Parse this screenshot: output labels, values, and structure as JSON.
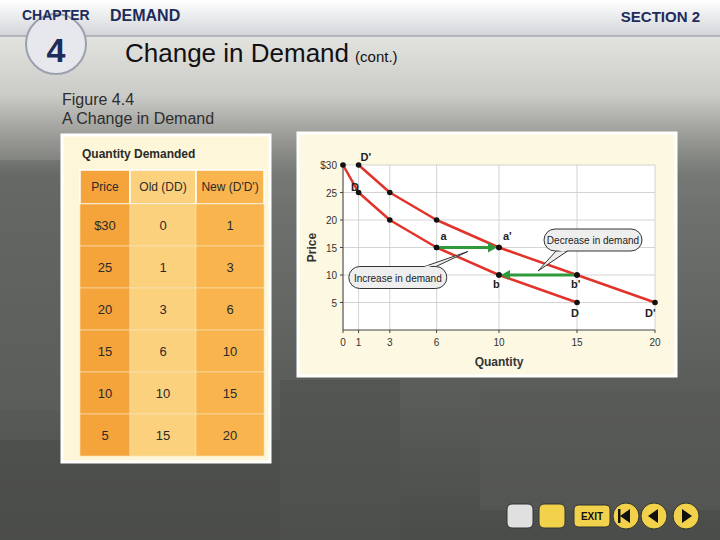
{
  "header": {
    "chapter_label": "CHAPTER",
    "chapter_number": "4",
    "chapter_title": "DEMAND",
    "section": "SECTION 2"
  },
  "title": "Change in Demand",
  "title_suffix": "(cont.)",
  "figure": {
    "number": "Figure 4.4",
    "caption": "A Change in Demand"
  },
  "table": {
    "title": "Quantity Demanded",
    "columns": [
      "Price",
      "Old (DD)",
      "New (D'D')"
    ],
    "rows": [
      [
        "$30",
        0,
        1
      ],
      [
        25,
        1,
        3
      ],
      [
        20,
        3,
        6
      ],
      [
        15,
        6,
        10
      ],
      [
        10,
        10,
        15
      ],
      [
        5,
        15,
        20
      ]
    ]
  },
  "chart_data": {
    "type": "line",
    "x_label": "Quantity",
    "y_label": "Price",
    "xlim": [
      0,
      20
    ],
    "xticks": [
      0,
      1,
      3,
      6,
      10,
      15,
      20
    ],
    "ylim": [
      0,
      30
    ],
    "yticks": [
      5,
      10,
      15,
      20,
      25,
      {
        "value": 30,
        "label": "$30"
      }
    ],
    "grid": true,
    "series": [
      {
        "name": "D",
        "color": "#e2332b",
        "marker": "circle",
        "x": [
          0,
          1,
          3,
          6,
          10,
          15
        ],
        "values": [
          30,
          25,
          20,
          15,
          10,
          5
        ]
      },
      {
        "name": "D'",
        "color": "#e2332b",
        "marker": "circle",
        "x": [
          1,
          3,
          6,
          10,
          15,
          20
        ],
        "values": [
          30,
          25,
          20,
          15,
          10,
          5
        ]
      }
    ],
    "shifts": [
      {
        "label": "Increase in demand",
        "color": "#2f9a3c",
        "from": {
          "name": "a",
          "x": 6,
          "y": 15
        },
        "to": {
          "name": "a'",
          "x": 10,
          "y": 15
        }
      },
      {
        "label": "Decrease in demand",
        "color": "#2f9a3c",
        "from": {
          "name": "b'",
          "x": 15,
          "y": 10
        },
        "to": {
          "name": "b",
          "x": 10,
          "y": 10
        }
      }
    ]
  },
  "footer": {
    "exit": "EXIT"
  }
}
